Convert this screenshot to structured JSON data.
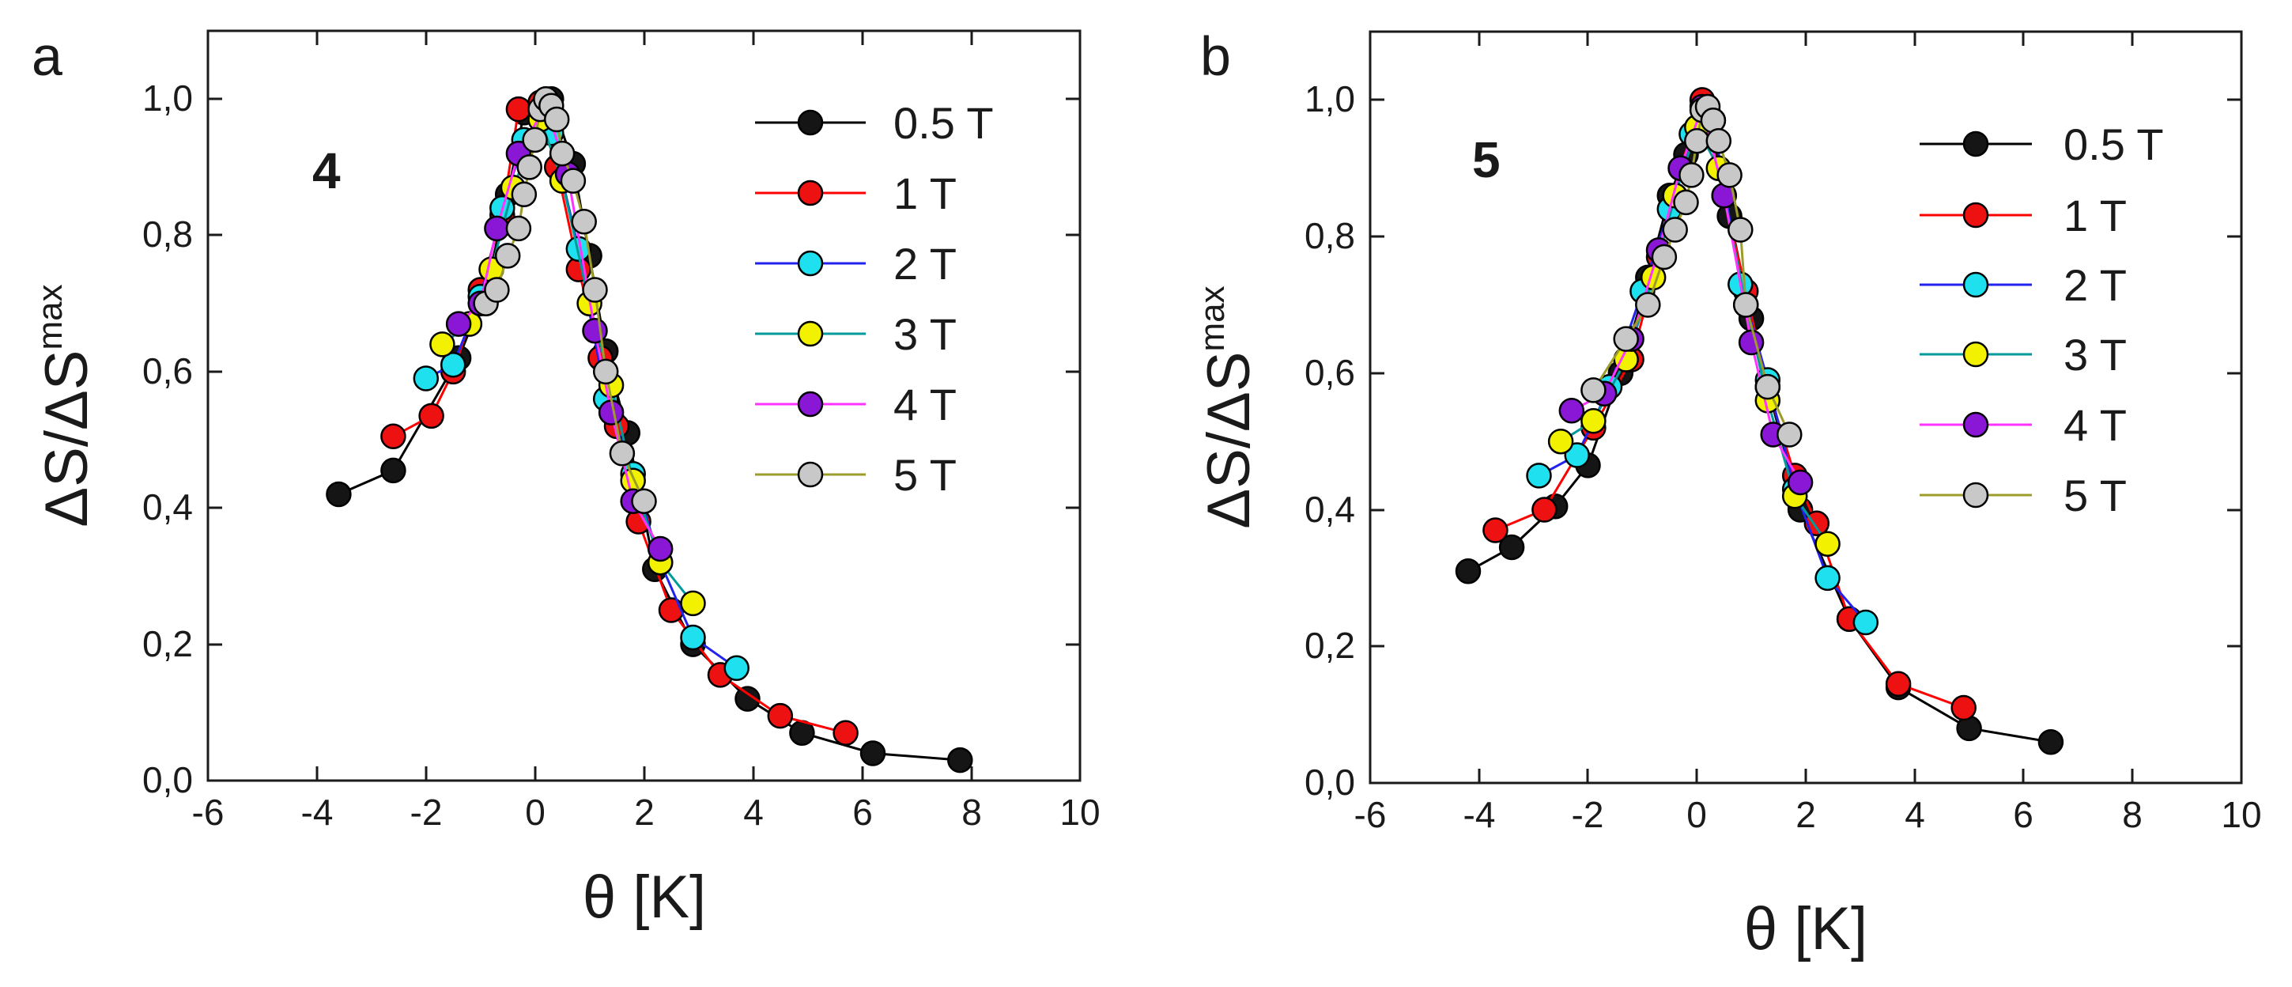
{
  "chart_data": [
    {
      "type": "line",
      "panel_label": "a",
      "annotation": "4",
      "xlabel": "θ [K]",
      "ylabel": "ΔS/ΔS",
      "ylabel_superscript": "max",
      "xlim": [
        -6,
        10
      ],
      "ylim": [
        0,
        1.1
      ],
      "xticks": [
        -6,
        -4,
        -2,
        0,
        2,
        4,
        6,
        8,
        10
      ],
      "xtick_labels": [
        "-6",
        "-4",
        "-2",
        "0",
        "2",
        "4",
        "6",
        "8",
        "10"
      ],
      "yticks": [
        0,
        0.2,
        0.4,
        0.6,
        0.8,
        1.0
      ],
      "ytick_labels": [
        "0,0",
        "0,2",
        "0,4",
        "0,6",
        "0,8",
        "1,0"
      ],
      "legend_position": "top-right",
      "series": [
        {
          "name": "0.5 T",
          "line_color": "#000000",
          "marker_color": "#151515",
          "x": [
            -3.6,
            -2.6,
            -1.4,
            -0.9,
            -0.5,
            -0.2,
            0.3,
            0.7,
            1.0,
            1.3,
            1.7,
            2.2,
            2.9,
            3.9,
            4.9,
            6.2,
            7.8
          ],
          "y": [
            0.42,
            0.455,
            0.62,
            0.72,
            0.86,
            0.98,
            1.0,
            0.905,
            0.77,
            0.63,
            0.51,
            0.31,
            0.2,
            0.12,
            0.07,
            0.04,
            0.03
          ]
        },
        {
          "name": "1 T",
          "line_color": "#ff0000",
          "marker_color": "#ee1111",
          "x": [
            -2.6,
            -1.9,
            -1.5,
            -1.0,
            -0.6,
            -0.3,
            0.1,
            0.4,
            0.8,
            1.2,
            1.5,
            1.9,
            2.5,
            3.4,
            4.5,
            5.7
          ],
          "y": [
            0.505,
            0.535,
            0.6,
            0.72,
            0.83,
            0.985,
            0.995,
            0.9,
            0.75,
            0.62,
            0.52,
            0.38,
            0.25,
            0.155,
            0.095,
            0.07
          ]
        },
        {
          "name": "2 T",
          "line_color": "#2222ee",
          "marker_color": "#1fe0ee",
          "x": [
            -2.0,
            -1.5,
            -1.0,
            -0.6,
            -0.2,
            0.3,
            0.8,
            1.3,
            1.8,
            2.3,
            2.9,
            3.7
          ],
          "y": [
            0.59,
            0.61,
            0.71,
            0.84,
            0.94,
            0.95,
            0.78,
            0.56,
            0.45,
            0.32,
            0.21,
            0.165
          ]
        },
        {
          "name": "3 T",
          "line_color": "#009a9a",
          "marker_color": "#f2f200",
          "x": [
            -1.7,
            -1.2,
            -0.8,
            -0.4,
            0.1,
            0.5,
            1.0,
            1.4,
            1.8,
            2.3,
            2.9
          ],
          "y": [
            0.64,
            0.67,
            0.75,
            0.87,
            0.97,
            0.88,
            0.7,
            0.58,
            0.44,
            0.32,
            0.26
          ]
        },
        {
          "name": "4 T",
          "line_color": "#ff33ff",
          "marker_color": "#8a17d6",
          "x": [
            -1.4,
            -1.0,
            -0.7,
            -0.3,
            0.2,
            0.6,
            1.1,
            1.4,
            1.8,
            2.3
          ],
          "y": [
            0.67,
            0.7,
            0.81,
            0.92,
            0.99,
            0.89,
            0.66,
            0.54,
            0.41,
            0.34
          ]
        },
        {
          "name": "5 T",
          "line_color": "#9c9c2b",
          "marker_color": "#c8c8c8",
          "x": [
            -0.9,
            -0.7,
            -0.5,
            -0.3,
            -0.2,
            -0.1,
            0.0,
            0.1,
            0.2,
            0.3,
            0.4,
            0.5,
            0.7,
            0.9,
            1.1,
            1.3,
            1.6,
            2.0
          ],
          "y": [
            0.7,
            0.72,
            0.77,
            0.81,
            0.86,
            0.9,
            0.94,
            0.985,
            1.0,
            0.99,
            0.97,
            0.92,
            0.88,
            0.82,
            0.72,
            0.6,
            0.48,
            0.41
          ]
        }
      ]
    },
    {
      "type": "line",
      "panel_label": "b",
      "annotation": "5",
      "xlabel": "θ [K]",
      "ylabel": "ΔS/ΔS",
      "ylabel_superscript": "max",
      "xlim": [
        -6,
        10
      ],
      "ylim": [
        0,
        1.1
      ],
      "xticks": [
        -6,
        -4,
        -2,
        0,
        2,
        4,
        6,
        8,
        10
      ],
      "xtick_labels": [
        "-6",
        "-4",
        "-2",
        "0",
        "2",
        "4",
        "6",
        "8",
        "10"
      ],
      "yticks": [
        0,
        0.2,
        0.4,
        0.6,
        0.8,
        1.0
      ],
      "ytick_labels": [
        "0,0",
        "0,2",
        "0,4",
        "0,6",
        "0,8",
        "1,0"
      ],
      "legend_position": "top-right",
      "series": [
        {
          "name": "0.5 T",
          "line_color": "#000000",
          "marker_color": "#151515",
          "x": [
            -4.2,
            -3.4,
            -2.6,
            -2.0,
            -1.4,
            -0.9,
            -0.5,
            -0.2,
            0.2,
            0.6,
            1.0,
            1.3,
            1.9,
            2.8,
            3.7,
            5.0,
            6.5
          ],
          "y": [
            0.31,
            0.345,
            0.405,
            0.465,
            0.6,
            0.74,
            0.86,
            0.92,
            0.985,
            0.83,
            0.68,
            0.58,
            0.4,
            0.24,
            0.14,
            0.08,
            0.06
          ]
        },
        {
          "name": "1 T",
          "line_color": "#ff0000",
          "marker_color": "#ee1111",
          "x": [
            -3.7,
            -2.8,
            -1.9,
            -1.2,
            -0.7,
            -0.3,
            0.1,
            0.5,
            0.9,
            1.3,
            1.8,
            2.2,
            2.8,
            3.7,
            4.9
          ],
          "y": [
            0.37,
            0.4,
            0.52,
            0.62,
            0.77,
            0.9,
            1.0,
            0.86,
            0.72,
            0.58,
            0.45,
            0.38,
            0.24,
            0.145,
            0.11
          ]
        },
        {
          "name": "2 T",
          "line_color": "#2222ee",
          "marker_color": "#1fe0ee",
          "x": [
            -2.9,
            -2.2,
            -1.6,
            -1.0,
            -0.5,
            -0.1,
            0.3,
            0.8,
            1.3,
            1.8,
            2.4,
            3.1
          ],
          "y": [
            0.45,
            0.48,
            0.58,
            0.72,
            0.84,
            0.95,
            0.97,
            0.73,
            0.59,
            0.43,
            0.3,
            0.235
          ]
        },
        {
          "name": "3 T",
          "line_color": "#009a9a",
          "marker_color": "#f2f200",
          "x": [
            -2.5,
            -1.9,
            -1.3,
            -0.8,
            -0.4,
            0.0,
            0.4,
            0.9,
            1.3,
            1.8,
            2.4
          ],
          "y": [
            0.5,
            0.53,
            0.62,
            0.74,
            0.86,
            0.96,
            0.9,
            0.7,
            0.56,
            0.42,
            0.35
          ]
        },
        {
          "name": "4 T",
          "line_color": "#ff33ff",
          "marker_color": "#8a17d6",
          "x": [
            -2.3,
            -1.7,
            -1.2,
            -0.7,
            -0.3,
            0.1,
            0.5,
            1.0,
            1.4,
            1.9
          ],
          "y": [
            0.545,
            0.57,
            0.65,
            0.78,
            0.9,
            0.99,
            0.86,
            0.645,
            0.51,
            0.44
          ]
        },
        {
          "name": "5 T",
          "line_color": "#9c9c2b",
          "marker_color": "#c8c8c8",
          "x": [
            -1.9,
            -1.3,
            -0.9,
            -0.6,
            -0.4,
            -0.2,
            -0.1,
            0.0,
            0.1,
            0.2,
            0.3,
            0.4,
            0.6,
            0.8,
            0.9,
            1.3,
            1.7
          ],
          "y": [
            0.575,
            0.65,
            0.7,
            0.77,
            0.81,
            0.85,
            0.89,
            0.94,
            0.985,
            0.99,
            0.97,
            0.94,
            0.89,
            0.81,
            0.7,
            0.58,
            0.51
          ]
        }
      ]
    }
  ]
}
